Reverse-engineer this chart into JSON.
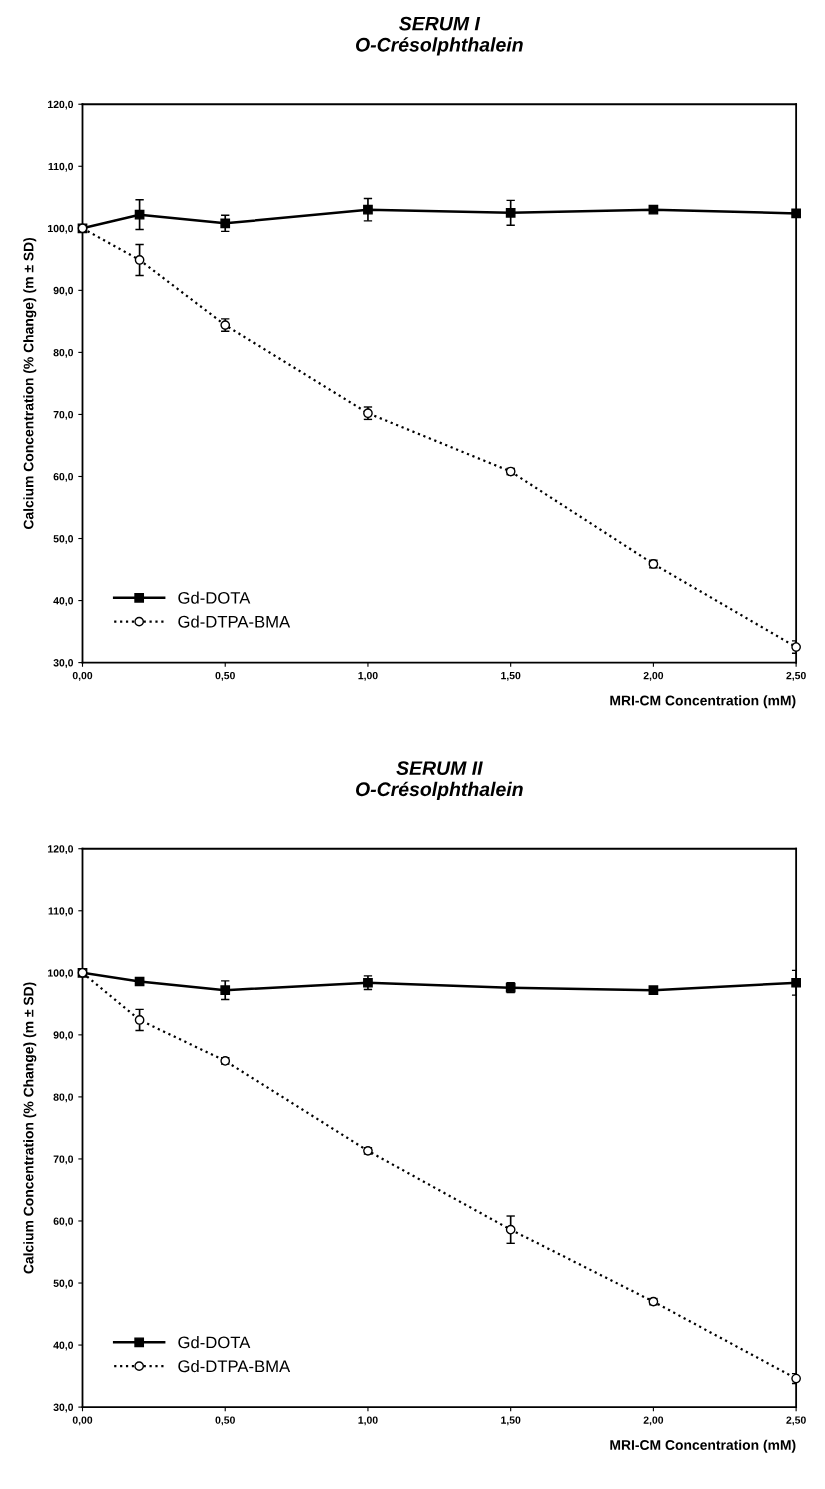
{
  "chart_data": [
    {
      "type": "line",
      "title": "SERUM I\nO-Crésolphthalein",
      "xlabel": "MRI-CM Concentration (mM)",
      "ylabel": "Calcium Concentration (% Change) (m ± SD)",
      "x": [
        0,
        0.2,
        0.5,
        1.0,
        1.5,
        2.0,
        2.5
      ],
      "series": [
        {
          "name": "Gd-DOTA",
          "color": "#000000",
          "marker": "square",
          "line_style": "solid",
          "values": [
            100,
            102.2,
            100.8,
            103.0,
            102.5,
            103.0,
            102.4
          ],
          "errors": [
            null,
            2.4,
            1.3,
            1.8,
            2.0,
            0.4,
            null
          ]
        },
        {
          "name": "Gd-DTPA-BMA",
          "color": "#000000",
          "marker": "circle",
          "line_style": "dotted",
          "values": [
            100,
            94.9,
            84.4,
            70.2,
            60.8,
            45.9,
            32.5
          ],
          "errors": [
            null,
            2.5,
            1.0,
            1.0,
            0.5,
            0.6,
            1.0
          ]
        }
      ],
      "xlim": [
        0,
        2.5
      ],
      "ylim": [
        30,
        120
      ],
      "xticks": [
        {
          "value": 0,
          "label": "0,00"
        },
        {
          "value": 0.5,
          "label": "0,50"
        },
        {
          "value": 1.0,
          "label": "1,00"
        },
        {
          "value": 1.5,
          "label": "1,50"
        },
        {
          "value": 2.0,
          "label": "2,00"
        },
        {
          "value": 2.5,
          "label": "2,50"
        }
      ],
      "yticks": [
        {
          "value": 30,
          "label": "30,0"
        },
        {
          "value": 40,
          "label": "40,0"
        },
        {
          "value": 50,
          "label": "50,0"
        },
        {
          "value": 60,
          "label": "60,0"
        },
        {
          "value": 70,
          "label": "70,0"
        },
        {
          "value": 80,
          "label": "80,0"
        },
        {
          "value": 90,
          "label": "90,0"
        },
        {
          "value": 100,
          "label": "100,0"
        },
        {
          "value": 110,
          "label": "110,0"
        },
        {
          "value": 120,
          "label": "120,0"
        }
      ],
      "grid": false,
      "legend": "bottom left"
    },
    {
      "type": "line",
      "title": "SERUM II\nO-Crésolphthalein",
      "xlabel": "MRI-CM Concentration (mM)",
      "ylabel": "Calcium Concentration (% Change) (m ± SD)",
      "x": [
        0,
        0.2,
        0.5,
        1.0,
        1.5,
        2.0,
        2.5
      ],
      "series": [
        {
          "name": "Gd-DOTA",
          "color": "#000000",
          "marker": "square",
          "line_style": "solid",
          "values": [
            100,
            98.6,
            97.2,
            98.4,
            97.6,
            97.2,
            98.4
          ],
          "errors": [
            null,
            0.4,
            1.5,
            1.1,
            0.8,
            0.4,
            2.0
          ]
        },
        {
          "name": "Gd-DTPA-BMA",
          "color": "#000000",
          "marker": "circle",
          "line_style": "dotted",
          "values": [
            100,
            92.4,
            85.8,
            71.3,
            58.6,
            47.0,
            34.6
          ],
          "errors": [
            null,
            1.7,
            0.5,
            0.5,
            2.2,
            0.5,
            0.8
          ]
        }
      ],
      "xlim": [
        0,
        2.5
      ],
      "ylim": [
        30,
        120
      ],
      "xticks": [
        {
          "value": 0,
          "label": "0,00"
        },
        {
          "value": 0.5,
          "label": "0,50"
        },
        {
          "value": 1.0,
          "label": "1,00"
        },
        {
          "value": 1.5,
          "label": "1,50"
        },
        {
          "value": 2.0,
          "label": "2,00"
        },
        {
          "value": 2.5,
          "label": "2,50"
        }
      ],
      "yticks": [
        {
          "value": 30,
          "label": "30,0"
        },
        {
          "value": 40,
          "label": "40,0"
        },
        {
          "value": 50,
          "label": "50,0"
        },
        {
          "value": 60,
          "label": "60,0"
        },
        {
          "value": 70,
          "label": "70,0"
        },
        {
          "value": 80,
          "label": "80,0"
        },
        {
          "value": 90,
          "label": "90,0"
        },
        {
          "value": 100,
          "label": "100,0"
        },
        {
          "value": 110,
          "label": "110,0"
        },
        {
          "value": 120,
          "label": "120,0"
        }
      ],
      "grid": false,
      "legend": "bottom left"
    }
  ]
}
